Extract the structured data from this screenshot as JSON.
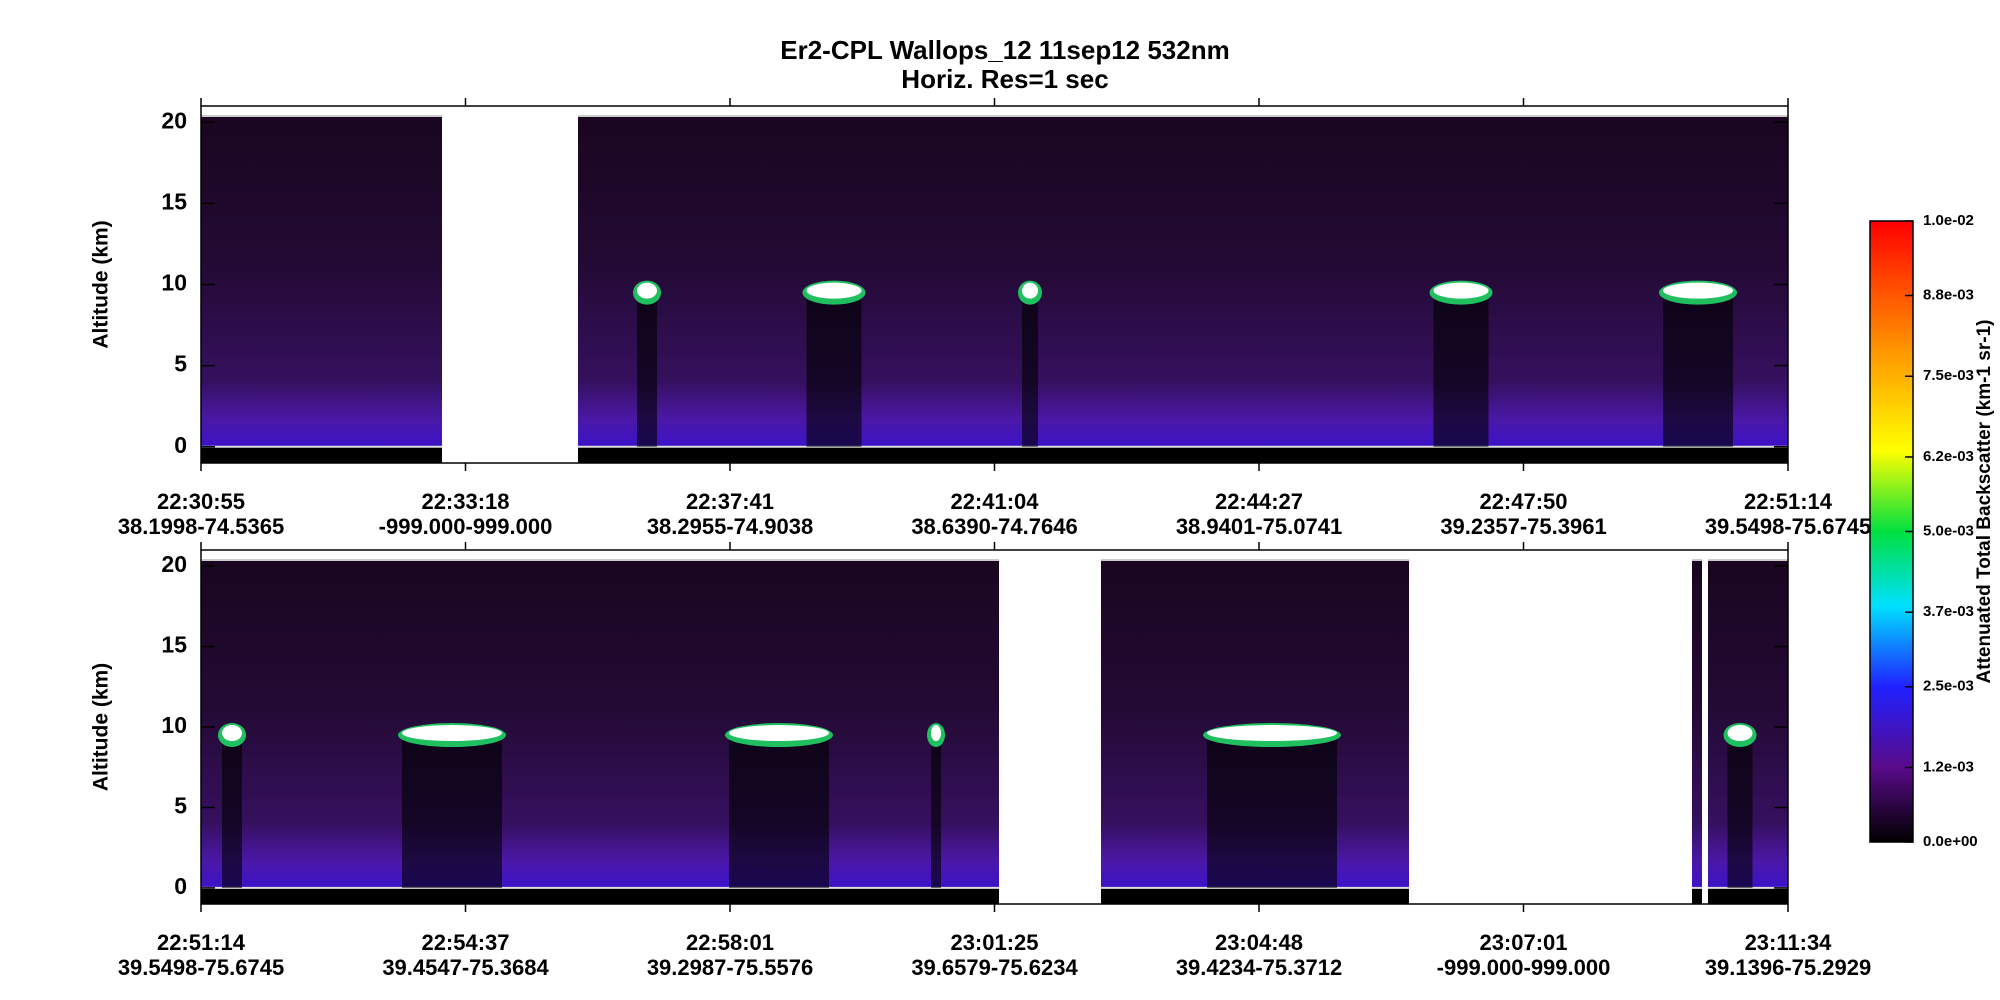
{
  "title": "Er2-CPL  Wallops_12  11sep12  532nm",
  "subtitle": "Horiz. Res=1 sec",
  "chart_data": [
    {
      "type": "heatmap",
      "ylabel": "Altitude (km)",
      "ylim": [
        -1,
        21
      ],
      "yticks": [
        0,
        5,
        10,
        15,
        20
      ],
      "categories": [
        "22:30:55",
        "22:33:18",
        "22:37:41",
        "22:41:04",
        "22:44:27",
        "22:47:50",
        "22:51:14"
      ],
      "positions": [
        "38.1998-74.5365",
        "-999.000-999.000",
        "38.2955-74.9038",
        "38.6390-74.7646",
        "38.9401-75.0741",
        "39.2357-75.3961",
        "39.5498-75.6745"
      ]
    },
    {
      "type": "heatmap",
      "ylabel": "Altitude (km)",
      "ylim": [
        -1,
        21
      ],
      "yticks": [
        0,
        5,
        10,
        15,
        20
      ],
      "categories": [
        "22:51:14",
        "22:54:37",
        "22:58:01",
        "23:01:25",
        "23:04:48",
        "23:07:01",
        "23:11:34"
      ],
      "positions": [
        "39.5498-75.6745",
        "39.4547-75.3684",
        "39.2987-75.5576",
        "39.6579-75.6234",
        "39.4234-75.3712",
        "-999.000-999.000",
        "39.1396-75.2929"
      ]
    },
    {
      "type": "colorbar",
      "label": "Attenuated Total Backscatter (km-1 sr-1)",
      "lim": [
        0,
        0.01
      ],
      "ticks": [
        {
          "value": 0,
          "label": "0.0e+00"
        },
        {
          "value": 0.0012,
          "label": "1.2e-03"
        },
        {
          "value": 0.0025,
          "label": "2.5e-03"
        },
        {
          "value": 0.0037,
          "label": "3.7e-03"
        },
        {
          "value": 0.005,
          "label": "5.0e-03"
        },
        {
          "value": 0.0062,
          "label": "6.2e-03"
        },
        {
          "value": 0.0075,
          "label": "7.5e-03"
        },
        {
          "value": 0.0088,
          "label": "8.8e-03"
        },
        {
          "value": 0.01,
          "label": "1.0e-02"
        }
      ]
    }
  ]
}
